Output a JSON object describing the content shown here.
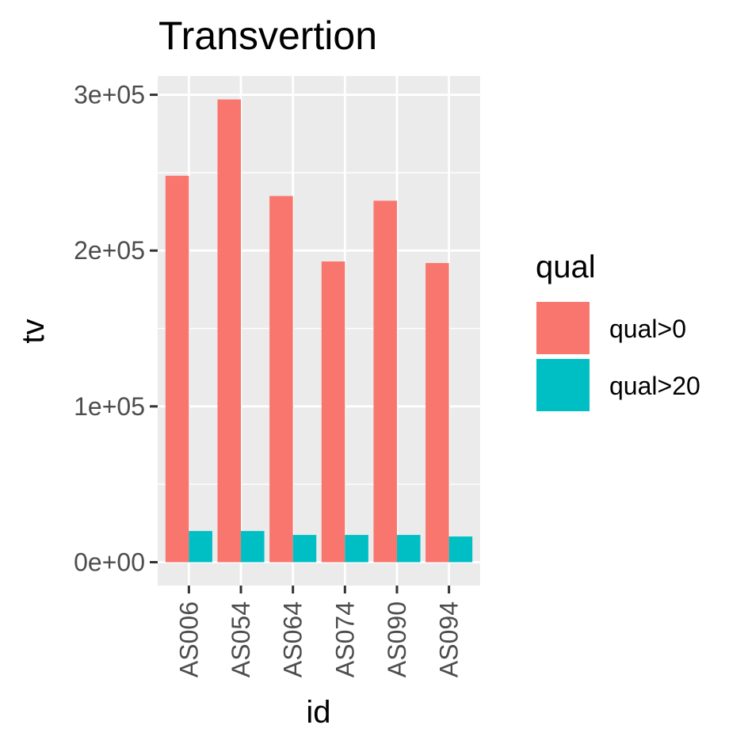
{
  "chart_data": {
    "type": "bar",
    "title": "Transvertion",
    "xlabel": "id",
    "ylabel": "tv",
    "categories": [
      "AS006",
      "AS054",
      "AS064",
      "AS074",
      "AS090",
      "AS094"
    ],
    "series": [
      {
        "name": "qual>0",
        "color": "#F8766D",
        "values": [
          248000,
          297000,
          235000,
          193000,
          232000,
          192000
        ]
      },
      {
        "name": "qual>20",
        "color": "#00BFC4",
        "values": [
          20000,
          20000,
          17500,
          17500,
          17500,
          16500
        ]
      }
    ],
    "ylim": [
      -15000,
      312000
    ],
    "yticks": [
      0,
      100000,
      200000,
      300000
    ],
    "ytick_labels": [
      "0e+00",
      "1e+05",
      "2e+05",
      "3e+05"
    ],
    "grid": true,
    "legend": {
      "title": "qual",
      "position": "right"
    },
    "panel_background": "#EBEBEB"
  }
}
